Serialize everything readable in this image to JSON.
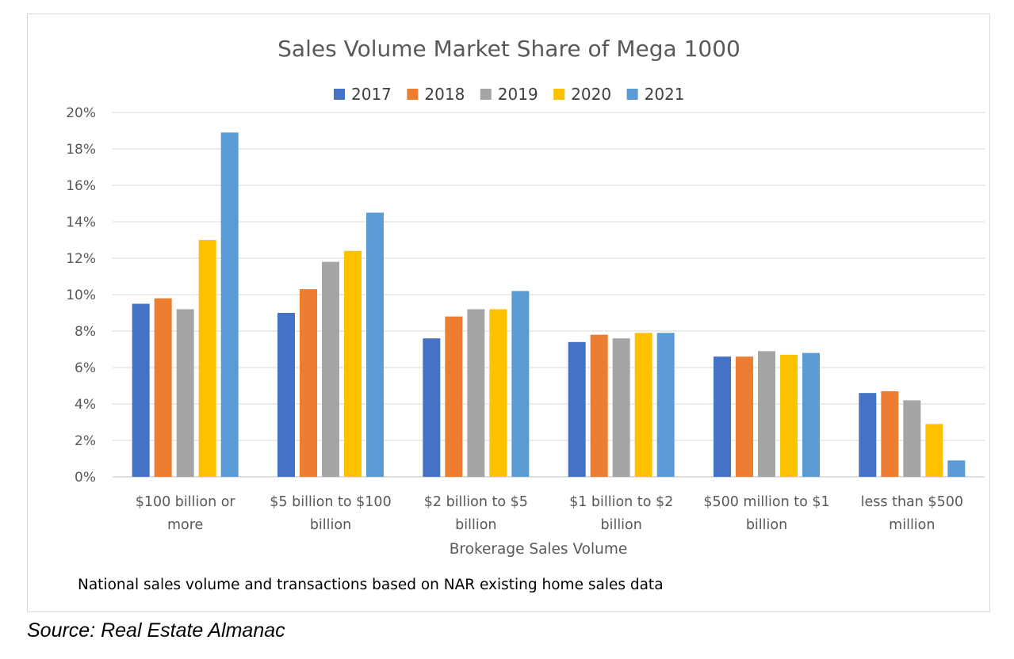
{
  "chart_data": {
    "type": "bar",
    "title": "Sales Volume Market Share of Mega 1000",
    "xlabel": "Brokerage Sales Volume",
    "ylabel": "",
    "ylim": [
      0,
      20
    ],
    "ytick_step": 2,
    "tick_suffix": "%",
    "grid": true,
    "legend_position": "top",
    "categories": [
      [
        "$100 billion or",
        "more"
      ],
      [
        "$5 billion to $100",
        "billion"
      ],
      [
        "$2 billion to $5",
        "billion"
      ],
      [
        "$1 billion to $2",
        "billion"
      ],
      [
        "$500 million to $1",
        "billion"
      ],
      [
        "less than $500",
        "million"
      ]
    ],
    "series": [
      {
        "name": "2017",
        "color": "#4472c4",
        "values": [
          9.5,
          9.0,
          7.6,
          7.4,
          6.6,
          4.6
        ]
      },
      {
        "name": "2018",
        "color": "#ed7d31",
        "values": [
          9.8,
          10.3,
          8.8,
          7.8,
          6.6,
          4.7
        ]
      },
      {
        "name": "2019",
        "color": "#a5a5a5",
        "values": [
          9.2,
          11.8,
          9.2,
          7.6,
          6.9,
          4.2
        ]
      },
      {
        "name": "2020",
        "color": "#ffc000",
        "values": [
          13.0,
          12.4,
          9.2,
          7.9,
          6.7,
          2.9
        ]
      },
      {
        "name": "2021",
        "color": "#5b9bd5",
        "values": [
          18.9,
          14.5,
          10.2,
          7.9,
          6.8,
          0.9
        ]
      }
    ],
    "gridline_color": "#d9d9d9",
    "axis_color": "#bfbfbf"
  },
  "note": "National sales volume and transactions based on NAR existing home sales data",
  "source": "Source: Real Estate Almanac"
}
